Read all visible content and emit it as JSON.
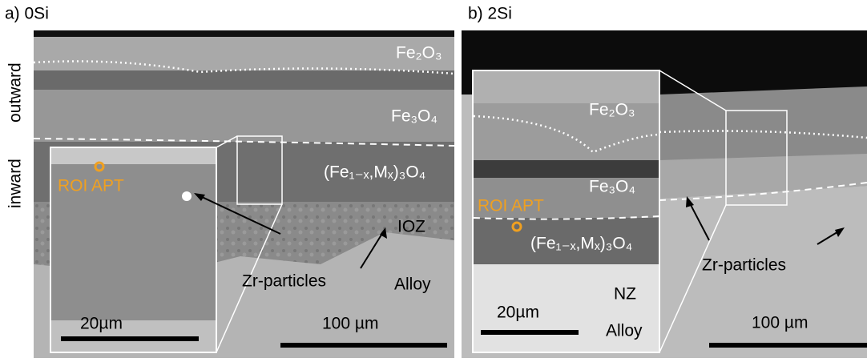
{
  "panels": [
    {
      "label": "a) 0Si",
      "labels": {
        "fe2o3": "Fe₂O₃",
        "fe3o4": "Fe₃O₄",
        "spinel": "(Fe₁₋ₓ,Mₓ)₃O₄",
        "ioz": "IOZ",
        "zr": "Zr-particles",
        "alloy": "Alloy",
        "scale": "100 µm"
      },
      "inset": {
        "roi": "ROI APT",
        "scale": "20µm"
      }
    },
    {
      "label": "b) 2Si",
      "labels": {
        "zr": "Zr-particles",
        "scale": "100 µm"
      },
      "inset": {
        "fe2o3": "Fe₂O₃",
        "fe3o4": "Fe₃O₄",
        "roi": "ROI APT",
        "spinel": "(Fe₁₋ₓ,Mₓ)₃O₄",
        "nz": "NZ",
        "scale": "20µm",
        "alloy": "Alloy"
      }
    }
  ],
  "side_labels": {
    "inward": "inward",
    "outward": "outward"
  }
}
